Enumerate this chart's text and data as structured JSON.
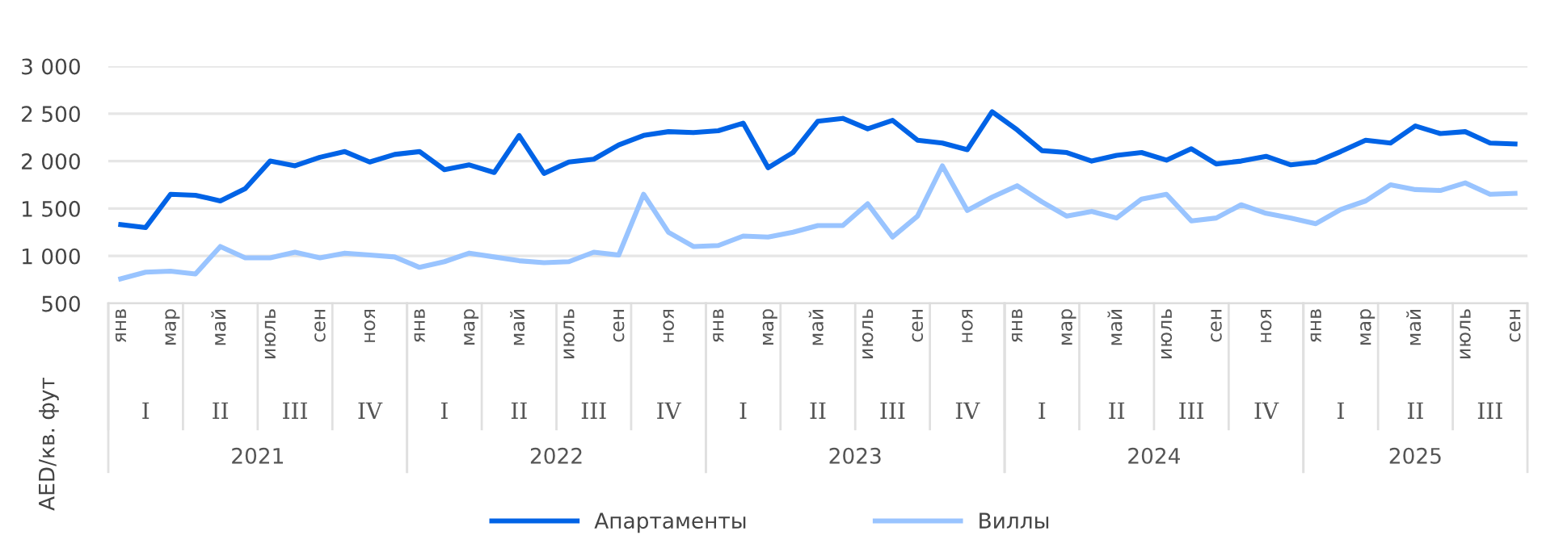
{
  "chart_data": {
    "type": "line",
    "ylabel": "AED/кв. фут",
    "categories": [
      "янв",
      null,
      "мар",
      null,
      "май",
      null,
      "июль",
      null,
      "сен",
      null,
      "ноя",
      null,
      "янв",
      null,
      "мар",
      null,
      "май",
      null,
      "июль",
      null,
      "сен",
      null,
      "ноя",
      null,
      "янв",
      null,
      "мар",
      null,
      "май",
      null,
      "июль",
      null,
      "сен",
      null,
      "ноя",
      null,
      "янв",
      null,
      "мар",
      null,
      "май",
      null,
      "июль",
      null,
      "сен",
      null,
      "ноя",
      null,
      "янв",
      null,
      "мар",
      null,
      "май",
      null,
      "июль",
      null,
      "сен"
    ],
    "series": [
      {
        "name": "Апартаменты",
        "color": "#0063e6",
        "values": [
          1330,
          1300,
          1650,
          1640,
          1580,
          1710,
          2000,
          1950,
          2040,
          2100,
          1990,
          2070,
          2100,
          1910,
          1960,
          1880,
          2270,
          1870,
          1990,
          2020,
          2170,
          2270,
          2310,
          2300,
          2320,
          2400,
          1930,
          2090,
          2420,
          2450,
          2340,
          2430,
          2220,
          2190,
          2120,
          2520,
          2330,
          2110,
          2090,
          2000,
          2060,
          2090,
          2010,
          2130,
          1970,
          2000,
          2050,
          1960,
          1990,
          2100,
          2220,
          2190,
          2370,
          2290,
          2310,
          2190,
          2180
        ]
      },
      {
        "name": "Виллы",
        "color": "#99c4ff",
        "values": [
          760,
          830,
          840,
          810,
          1100,
          980,
          980,
          1040,
          980,
          1030,
          1010,
          990,
          880,
          940,
          1030,
          990,
          950,
          930,
          940,
          1040,
          1010,
          1650,
          1250,
          1100,
          1110,
          1210,
          1200,
          1250,
          1320,
          1320,
          1550,
          1200,
          1420,
          1950,
          1480,
          1620,
          1740,
          1570,
          1420,
          1470,
          1400,
          1600,
          1650,
          1370,
          1400,
          1540,
          1450,
          1400,
          1340,
          1490,
          1580,
          1750,
          1700,
          1690,
          1770,
          1650,
          1660
        ]
      }
    ],
    "ylim": [
      500,
      3000
    ],
    "yticks": [
      500,
      {
        "value": 1000,
        "label": "1 000"
      },
      {
        "value": 1500,
        "label": "1 500"
      },
      {
        "value": 2000,
        "label": "2 000"
      },
      {
        "value": 2500,
        "label": "2 500"
      },
      {
        "value": 3000,
        "label": "3 000"
      }
    ],
    "grid": "y",
    "legend": "bottom",
    "line_style": "solid",
    "marker": "none",
    "annotations": [
      "I",
      "II",
      "III",
      "IV",
      "I",
      "II",
      "III",
      "IV",
      "I",
      "II",
      "III",
      "IV",
      "I",
      "II",
      "III",
      "IV",
      "I",
      "II",
      "III",
      "2021",
      "2022",
      "2023",
      "2024",
      "2025"
    ]
  }
}
